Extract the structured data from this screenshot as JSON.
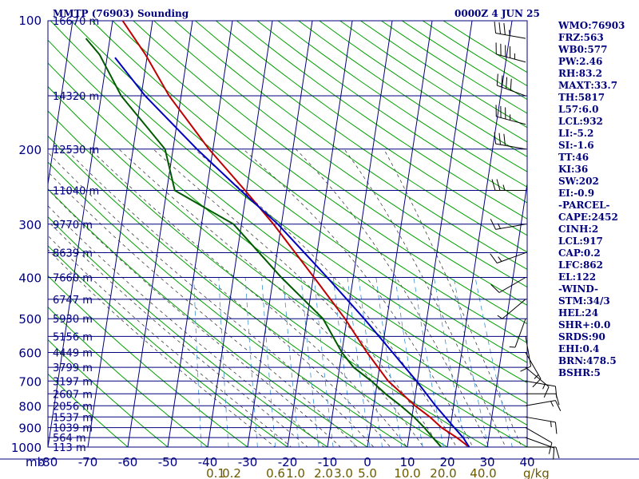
{
  "header": {
    "title": "MMTP (76903) Sounding",
    "time": "0000Z  4 JUN 25"
  },
  "chart_data": {
    "type": "line",
    "title": "MMTP (76903) Sounding",
    "valid_time": "0000Z  4 JUN 25",
    "xlabel": "",
    "ylabel": "mb",
    "pressure_ticks": [
      100,
      200,
      300,
      400,
      500,
      600,
      700,
      800,
      900,
      1000
    ],
    "pressure_labels": [
      "100",
      "200",
      "300",
      "400",
      "500",
      "600",
      "700",
      "800",
      "900",
      "1000"
    ],
    "temperature_ticks": [
      -80,
      -70,
      -60,
      -50,
      -40,
      -30,
      -20,
      -10,
      0,
      10,
      20,
      30,
      40
    ],
    "temperature_labels": [
      "-80",
      "-70",
      "-60",
      "-50",
      "-40",
      "-30",
      "-20",
      "-10",
      "0",
      "10",
      "20",
      "30",
      "40"
    ],
    "mb_label": "mb",
    "xlim": [
      -80,
      40
    ],
    "ylim": [
      1000,
      100
    ],
    "y_scale": "log",
    "skew_per_decade_mb": 81,
    "mixing_ratio_labels": [
      {
        "t": -38,
        "text": "0.1"
      },
      {
        "t": -34,
        "text": "0.2"
      },
      {
        "t": -23,
        "text": "0.6"
      },
      {
        "t": -18,
        "text": "1.0"
      },
      {
        "t": -11,
        "text": "2.0"
      },
      {
        "t": -6,
        "text": "3.0"
      },
      {
        "t": 0,
        "text": "5.0"
      },
      {
        "t": 10,
        "text": "10.0"
      },
      {
        "t": 19,
        "text": "20.0"
      },
      {
        "t": 29,
        "text": "40.0"
      }
    ],
    "mixing_ratio_unit": "g/kg",
    "height_labels": [
      {
        "p": 100,
        "text": "16670 m"
      },
      {
        "p": 150,
        "text": "14320 m"
      },
      {
        "p": 200,
        "text": "12530 m"
      },
      {
        "p": 250,
        "text": "11040 m"
      },
      {
        "p": 300,
        "text": "9770 m"
      },
      {
        "p": 350,
        "text": "8639 m"
      },
      {
        "p": 400,
        "text": "7660 m"
      },
      {
        "p": 450,
        "text": "6747 m"
      },
      {
        "p": 500,
        "text": "5930 m"
      },
      {
        "p": 550,
        "text": "5156 m"
      },
      {
        "p": 600,
        "text": "4449 m"
      },
      {
        "p": 650,
        "text": "3799 m"
      },
      {
        "p": 700,
        "text": "3197 m"
      },
      {
        "p": 750,
        "text": "2607 m"
      },
      {
        "p": 800,
        "text": "2056 m"
      },
      {
        "p": 850,
        "text": "1537 m"
      },
      {
        "p": 900,
        "text": "1039 m"
      },
      {
        "p": 950,
        "text": "564 m"
      },
      {
        "p": 1000,
        "text": "113 m"
      }
    ],
    "series": [
      {
        "name": "temperature",
        "color": "#c00000",
        "points": [
          {
            "p": 1000,
            "t": 25.5
          },
          {
            "p": 950,
            "t": 22.0
          },
          {
            "p": 900,
            "t": 17.8
          },
          {
            "p": 850,
            "t": 14.5
          },
          {
            "p": 800,
            "t": 10.4
          },
          {
            "p": 700,
            "t": 2.7
          },
          {
            "p": 600,
            "t": -3.7
          },
          {
            "p": 500,
            "t": -10.5
          },
          {
            "p": 400,
            "t": -19.8
          },
          {
            "p": 300,
            "t": -32.0
          },
          {
            "p": 250,
            "t": -40.4
          },
          {
            "p": 200,
            "t": -51.0
          },
          {
            "p": 150,
            "t": -63.0
          },
          {
            "p": 120,
            "t": -70.5
          },
          {
            "p": 100,
            "t": -77.5
          }
        ]
      },
      {
        "name": "dewpoint",
        "color": "#005a00",
        "points": [
          {
            "p": 1000,
            "t": 18.5
          },
          {
            "p": 950,
            "t": 16.0
          },
          {
            "p": 900,
            "t": 13.5
          },
          {
            "p": 850,
            "t": 10.5
          },
          {
            "p": 800,
            "t": 6.8
          },
          {
            "p": 750,
            "t": 2.5
          },
          {
            "p": 700,
            "t": -1.5
          },
          {
            "p": 650,
            "t": -6.5
          },
          {
            "p": 600,
            "t": -10.0
          },
          {
            "p": 500,
            "t": -16.0
          },
          {
            "p": 400,
            "t": -28.0
          },
          {
            "p": 300,
            "t": -42.0
          },
          {
            "p": 250,
            "t": -58.0
          },
          {
            "p": 200,
            "t": -62.0
          },
          {
            "p": 150,
            "t": -75.0
          },
          {
            "p": 120,
            "t": -82.0
          },
          {
            "p": 110,
            "t": -86.0
          }
        ]
      },
      {
        "name": "parcel",
        "color": "#0000c0",
        "points": [
          {
            "p": 1000,
            "t": 25.5
          },
          {
            "p": 950,
            "t": 23.6
          },
          {
            "p": 900,
            "t": 21.0
          },
          {
            "p": 800,
            "t": 15.5
          },
          {
            "p": 700,
            "t": 9.8
          },
          {
            "p": 600,
            "t": 2.7
          },
          {
            "p": 500,
            "t": -5.7
          },
          {
            "p": 400,
            "t": -16.5
          },
          {
            "p": 300,
            "t": -30.9
          },
          {
            "p": 250,
            "t": -41.5
          },
          {
            "p": 200,
            "t": -54.0
          },
          {
            "p": 150,
            "t": -69.0
          },
          {
            "p": 122,
            "t": -78.0
          }
        ]
      }
    ],
    "wind_barbs": [
      {
        "p": 110,
        "dir": 280,
        "kt": 35
      },
      {
        "p": 125,
        "dir": 285,
        "kt": 45
      },
      {
        "p": 150,
        "dir": 290,
        "kt": 40
      },
      {
        "p": 175,
        "dir": 285,
        "kt": 35
      },
      {
        "p": 200,
        "dir": 280,
        "kt": 30
      },
      {
        "p": 250,
        "dir": 270,
        "kt": 25
      },
      {
        "p": 300,
        "dir": 260,
        "kt": 15
      },
      {
        "p": 350,
        "dir": 250,
        "kt": 15
      },
      {
        "p": 400,
        "dir": 240,
        "kt": 10
      },
      {
        "p": 450,
        "dir": 230,
        "kt": 5
      },
      {
        "p": 500,
        "dir": 200,
        "kt": 5
      },
      {
        "p": 550,
        "dir": 170,
        "kt": 10
      },
      {
        "p": 600,
        "dir": 150,
        "kt": 15
      },
      {
        "p": 650,
        "dir": 130,
        "kt": 15
      },
      {
        "p": 700,
        "dir": 100,
        "kt": 10
      },
      {
        "p": 750,
        "dir": 90,
        "kt": 10
      },
      {
        "p": 800,
        "dir": 80,
        "kt": 15
      },
      {
        "p": 850,
        "dir": 100,
        "kt": 15
      },
      {
        "p": 900,
        "dir": 120,
        "kt": 10
      },
      {
        "p": 950,
        "dir": 110,
        "kt": 10
      },
      {
        "p": 1000,
        "dir": 90,
        "kt": 10
      }
    ],
    "indices": [
      "WMO:76903",
      "FRZ:563",
      "WB0:577",
      "PW:2.46",
      "RH:83.2",
      "MAXT:33.7",
      "TH:5817",
      "L57:6.0",
      "LCL:932",
      "LI:-5.2",
      "SI:-1.6",
      "TT:46",
      "KI:36",
      "SW:202",
      "EI:-0.9",
      "-PARCEL-",
      "CAPE:2452",
      "CINH:2",
      "LCL:917",
      "CAP:0.2",
      "LFC:862",
      "EL:122",
      "-WIND-",
      "STM:34/3",
      "HEL:24",
      "SHR+:0.0",
      "SRDS:90",
      "EHI:0.4",
      "BRN:478.5",
      "BSHR:5"
    ],
    "colors": {
      "frame": "#00007f",
      "isobar": "#00007f",
      "dry_adiabat": "#00a000",
      "moist_adiabat": "#404040",
      "mixing_ratio": "#3a8fd0",
      "mixing_label": "#6b5a00"
    }
  }
}
